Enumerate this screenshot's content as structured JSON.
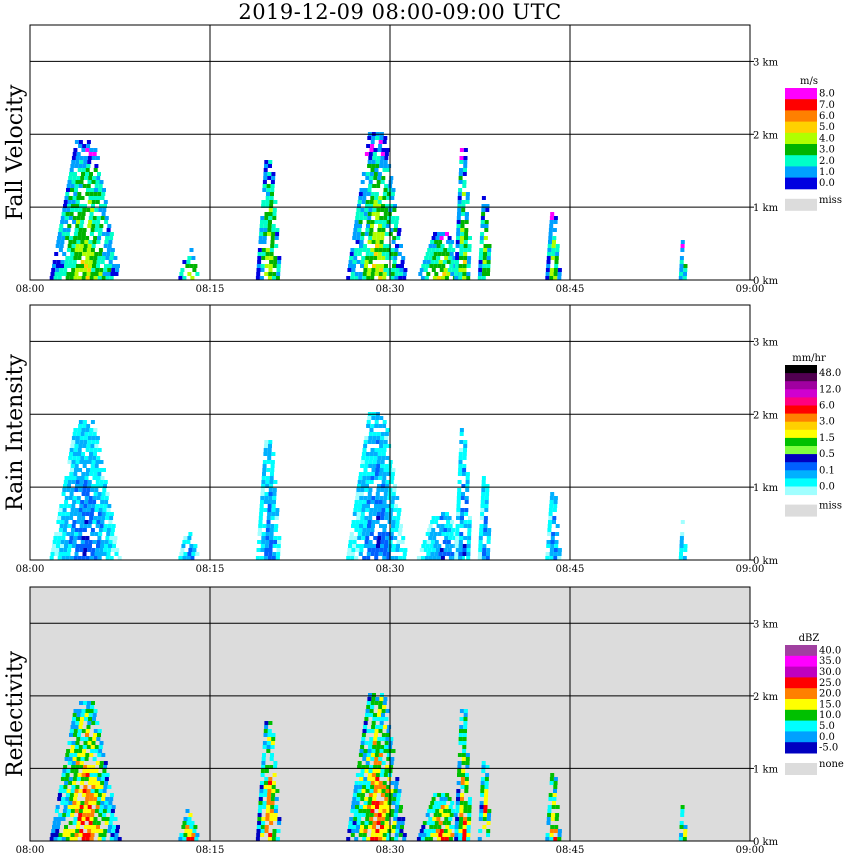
{
  "title": "2019-12-09   08:00-09:00 UTC",
  "chart_data": [
    {
      "type": "heatmap",
      "ylabel": "Fall Velocity",
      "x_ticks": [
        "08:00",
        "08:15",
        "08:30",
        "08:45",
        "09:00"
      ],
      "y_ticks": [
        "0 km",
        "1 km",
        "2 km",
        "3 km"
      ],
      "xlim": [
        "08:00",
        "09:00"
      ],
      "ylim_km": [
        0,
        3.5
      ],
      "background": "#ffffff",
      "colorbar": {
        "unit": "m/s",
        "labels": [
          "8.0",
          "7.0",
          "6.0",
          "5.0",
          "4.0",
          "3.0",
          "2.0",
          "1.0",
          "0.0"
        ],
        "colors": [
          "#ff00ff",
          "#ff0000",
          "#ff8000",
          "#ffd000",
          "#b0ff00",
          "#00b400",
          "#00ffc8",
          "#00a0ff",
          "#0000e0"
        ],
        "missing_label": "miss",
        "missing_color": "#dcdcdc"
      }
    },
    {
      "type": "heatmap",
      "ylabel": "Rain Intensity",
      "x_ticks": [
        "08:00",
        "08:15",
        "08:30",
        "08:45",
        "09:00"
      ],
      "y_ticks": [
        "0 km",
        "1 km",
        "2 km",
        "3 km"
      ],
      "xlim": [
        "08:00",
        "09:00"
      ],
      "ylim_km": [
        0,
        3.5
      ],
      "background": "#ffffff",
      "colorbar": {
        "unit": "mm/hr",
        "labels": [
          "48.0",
          "12.0",
          "6.0",
          "3.0",
          "1.5",
          "0.5",
          "0.1",
          "0.0"
        ],
        "colors": [
          "#000000",
          "#500050",
          "#a000a0",
          "#d000d0",
          "#ff0080",
          "#ff0000",
          "#ff8000",
          "#ffd000",
          "#ffff00",
          "#00c000",
          "#80ff40",
          "#0000c0",
          "#0060ff",
          "#00b0ff",
          "#00ffff",
          "#a0ffff"
        ],
        "missing_label": "miss",
        "missing_color": "#dcdcdc"
      }
    },
    {
      "type": "heatmap",
      "ylabel": "Reflectivity",
      "x_ticks": [
        "08:00",
        "08:15",
        "08:30",
        "08:45",
        "09:00"
      ],
      "y_ticks": [
        "0 km",
        "1 km",
        "2 km",
        "3 km"
      ],
      "xlim": [
        "08:00",
        "09:00"
      ],
      "ylim_km": [
        0,
        3.5
      ],
      "background": "#dcdcdc",
      "colorbar": {
        "unit": "dBZ",
        "labels": [
          "40.0",
          "35.0",
          "30.0",
          "25.0",
          "20.0",
          "15.0",
          "10.0",
          "5.0",
          "0.0",
          "-5.0"
        ],
        "colors": [
          "#a040a0",
          "#ff00ff",
          "#c000c0",
          "#ff0000",
          "#ff8000",
          "#ffff00",
          "#00c000",
          "#00ffff",
          "#00a0ff",
          "#0000c0"
        ],
        "missing_label": "none",
        "missing_color": "#dcdcdc"
      }
    }
  ]
}
